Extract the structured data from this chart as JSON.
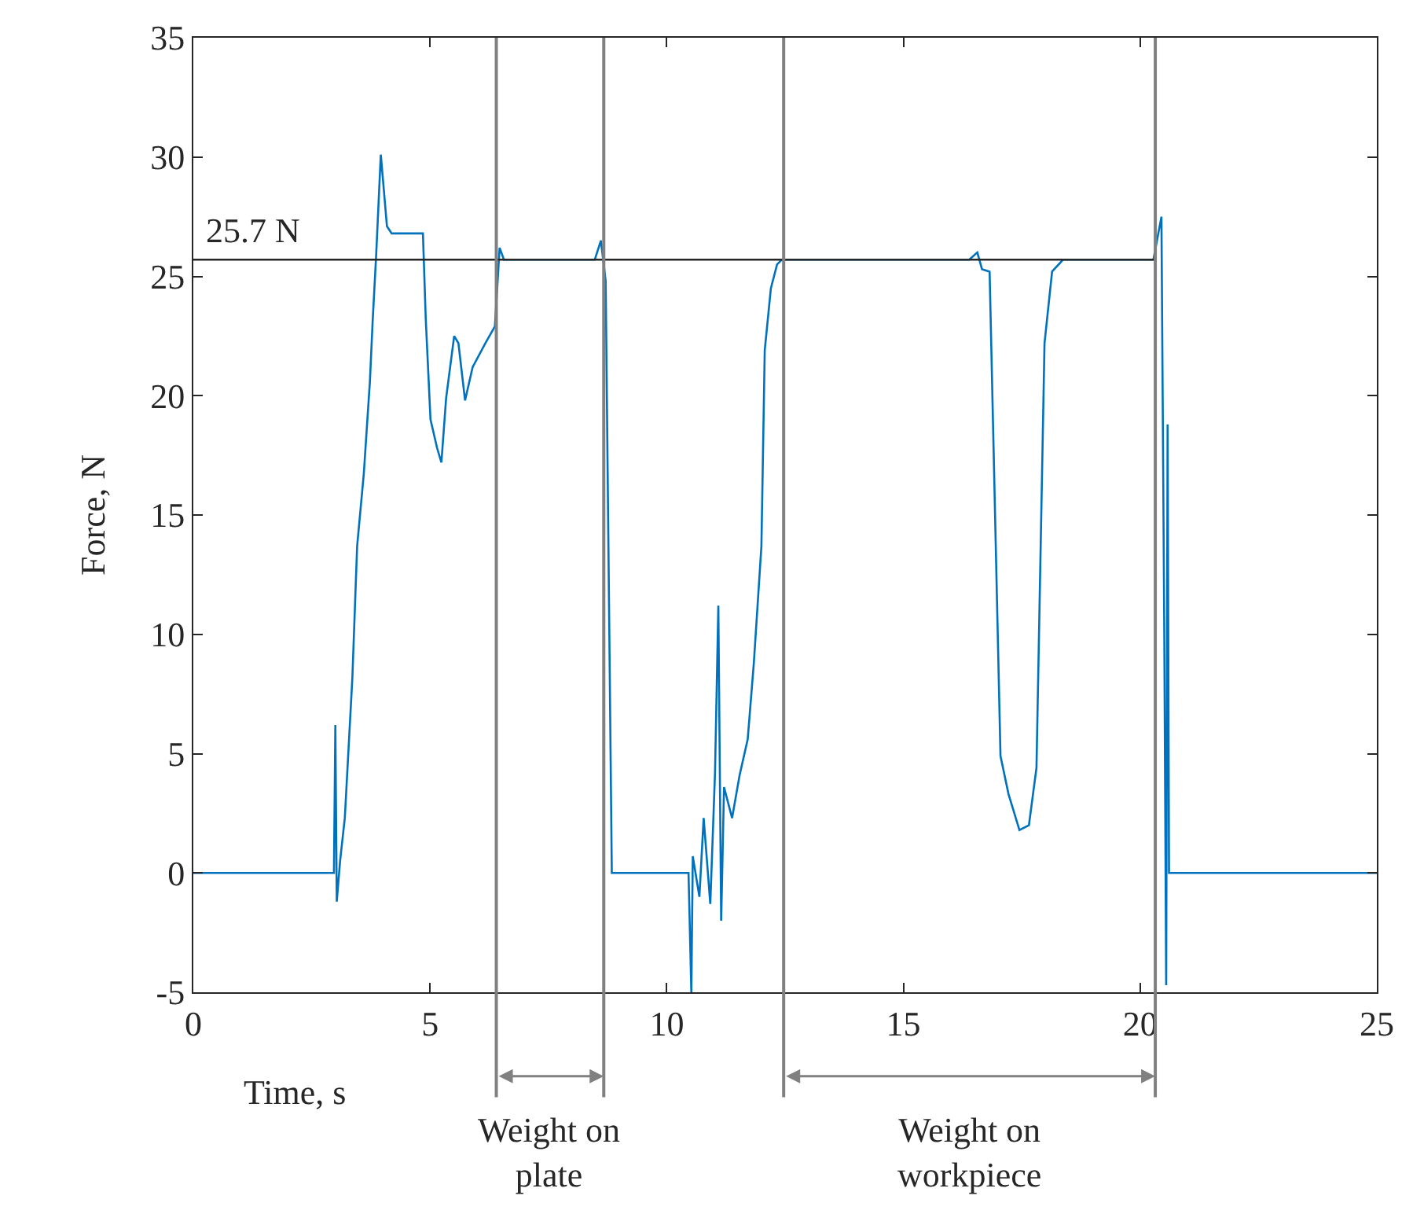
{
  "chart_data": {
    "type": "line",
    "xlabel": "Time, s",
    "ylabel": "Force, N",
    "xlim": [
      0,
      25
    ],
    "ylim": [
      -5,
      35
    ],
    "xticks": [
      0,
      5,
      10,
      15,
      20,
      25
    ],
    "yticks": [
      -5,
      0,
      5,
      10,
      15,
      20,
      25,
      30,
      35
    ],
    "legend": false,
    "series": [
      {
        "color": "#0072bd",
        "x": [
          0,
          1.4,
          2.0,
          2.97,
          3.0,
          3.03,
          3.1,
          3.2,
          3.36,
          3.46,
          3.6,
          3.73,
          3.79,
          3.86,
          3.96,
          4.09,
          4.19,
          4.85,
          4.91,
          5.01,
          5.15,
          5.24,
          5.34,
          5.51,
          5.6,
          5.74,
          5.9,
          6.17,
          6.37,
          6.47,
          6.56,
          8.48,
          8.61,
          8.71,
          8.84,
          10.46,
          10.52,
          10.55,
          10.69,
          10.78,
          10.92,
          11.02,
          11.09,
          11.15,
          11.21,
          11.38,
          11.54,
          11.71,
          11.84,
          12.0,
          12.07,
          12.2,
          12.33,
          12.43,
          16.39,
          16.56,
          16.66,
          16.82,
          17.05,
          17.22,
          17.45,
          17.65,
          17.81,
          17.98,
          18.14,
          18.37,
          20.28,
          20.45,
          20.51,
          20.55,
          20.58,
          20.61,
          25
        ],
        "values": [
          0,
          0,
          0,
          0,
          6.2,
          -1.2,
          0.5,
          2.3,
          8.2,
          13.7,
          16.7,
          20.6,
          23.2,
          25.8,
          30.1,
          27.1,
          26.8,
          26.8,
          23.2,
          19,
          17.8,
          17.2,
          19.9,
          22.5,
          22.2,
          19.8,
          21.2,
          22.2,
          22.9,
          26.2,
          25.7,
          25.7,
          26.5,
          24.8,
          0,
          0,
          -5,
          0.7,
          -1,
          2.3,
          -1.3,
          4.2,
          11.2,
          -2,
          3.6,
          2.3,
          4.1,
          5.6,
          8.8,
          13.7,
          21.9,
          24.5,
          25.5,
          25.7,
          25.7,
          26,
          25.3,
          25.2,
          4.9,
          3.3,
          1.8,
          2,
          4.4,
          22.2,
          25.2,
          25.7,
          25.7,
          27.5,
          10.1,
          -4.7,
          18.8,
          0,
          0
        ]
      },
      {
        "color": "#262626",
        "x": [
          0,
          20.32
        ],
        "values": [
          25.7,
          25.7
        ]
      }
    ],
    "ref_lines": [
      {
        "axis": "x",
        "value": 6.4,
        "color": "#808080"
      },
      {
        "axis": "x",
        "value": 8.67,
        "color": "#808080"
      },
      {
        "axis": "x",
        "value": 12.47,
        "color": "#808080"
      },
      {
        "axis": "x",
        "value": 20.32,
        "color": "#808080"
      }
    ],
    "annotations": [
      {
        "text": "25.7 N",
        "x": 0.2,
        "y": 25.7
      },
      "Weight on\nplate",
      "Weight on\nworkpiece"
    ]
  }
}
